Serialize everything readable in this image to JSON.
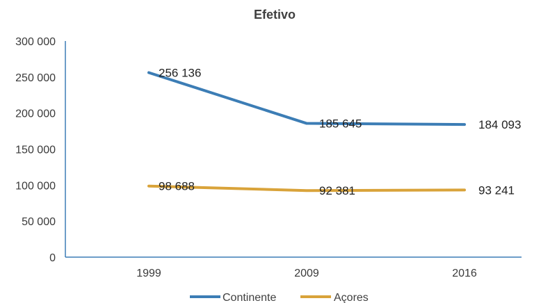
{
  "chart_data": {
    "type": "line",
    "title": "Efetivo",
    "categories": [
      "1999",
      "2009",
      "2016"
    ],
    "series": [
      {
        "name": "Continente",
        "values": [
          256136,
          185645,
          184093
        ],
        "labels": [
          "256 136",
          "185 645",
          "184 093"
        ],
        "color": "#3C7DB5"
      },
      {
        "name": "Açores",
        "values": [
          98688,
          92381,
          93241
        ],
        "labels": [
          "98 688",
          "92 381",
          "93 241"
        ],
        "color": "#D9A33A"
      }
    ],
    "ylim": [
      0,
      300000
    ],
    "yticks": [
      0,
      50000,
      100000,
      150000,
      200000,
      250000,
      300000
    ],
    "ytick_labels": [
      "0",
      "50 000",
      "100 000",
      "150 000",
      "200 000",
      "250 000",
      "300 000"
    ],
    "xlabel": "",
    "ylabel": "",
    "grid": false,
    "legend_position": "bottom",
    "axis_color": "#3C7DB5"
  }
}
